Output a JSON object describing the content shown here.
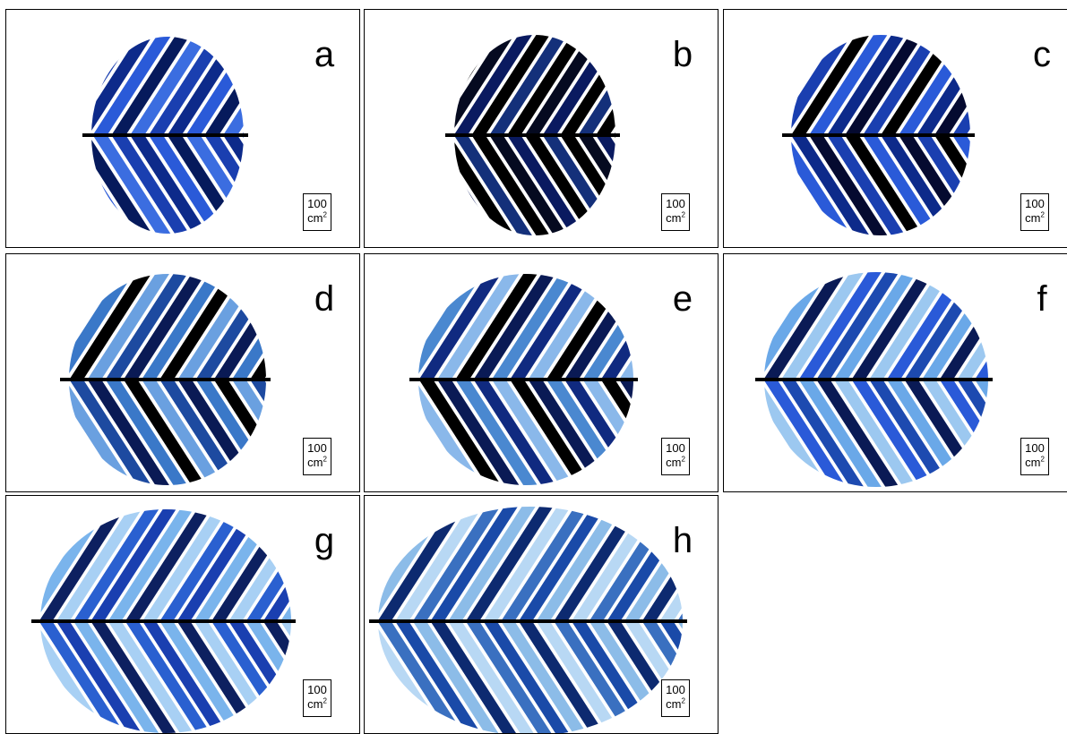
{
  "panels": [
    {
      "label": "a"
    },
    {
      "label": "b"
    },
    {
      "label": "c"
    },
    {
      "label": "d"
    },
    {
      "label": "e"
    },
    {
      "label": "f"
    },
    {
      "label": "g"
    },
    {
      "label": "h"
    }
  ],
  "scale_bar": {
    "value": "100",
    "unit": "cm",
    "exponent": "2"
  }
}
